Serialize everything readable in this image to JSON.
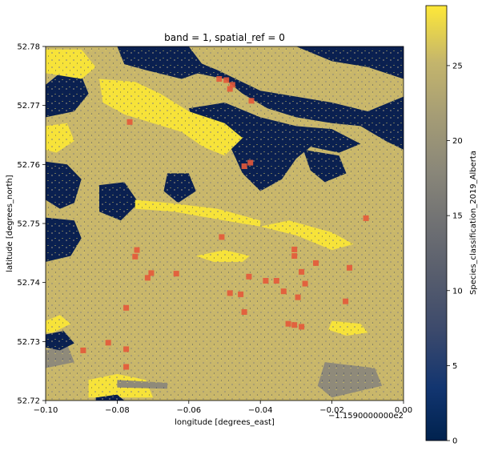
{
  "chart_data": {
    "type": "heatmap",
    "title": "band = 1, spatial_ref = 0",
    "xlabel": "longitude [degrees_east]",
    "ylabel": "latitude [degrees_north]",
    "x_offset_label": "−1.1590000000e2",
    "xlim": [
      -0.1,
      0.0
    ],
    "ylim": [
      52.72,
      52.78
    ],
    "x_ticks": [
      "−0.10",
      "−0.08",
      "−0.06",
      "−0.04",
      "−0.02",
      "0.00"
    ],
    "y_ticks": [
      "52.72",
      "52.73",
      "52.74",
      "52.75",
      "52.76",
      "52.77",
      "52.78"
    ],
    "colorbar": {
      "label": "Species_classification_2019_Alberta",
      "range": [
        0,
        29
      ],
      "ticks": [
        "0",
        "5",
        "10",
        "15",
        "20",
        "25"
      ],
      "colormap": "cividis"
    },
    "class_colors": {
      "water": "#0a2050",
      "upland": "#c9b76b",
      "bright": "#f7e339",
      "sparse": "#8f8a7a"
    },
    "patches": [
      {
        "class": "water",
        "points": [
          [
            -0.1,
            52.7735
          ],
          [
            -0.095,
            52.776
          ],
          [
            -0.09,
            52.775
          ],
          [
            -0.088,
            52.772
          ],
          [
            -0.092,
            52.769
          ],
          [
            -0.1,
            52.768
          ]
        ]
      },
      {
        "class": "water",
        "points": [
          [
            -0.08,
            52.78
          ],
          [
            -0.06,
            52.78
          ],
          [
            -0.055,
            52.776
          ],
          [
            -0.062,
            52.7745
          ],
          [
            -0.072,
            52.776
          ],
          [
            -0.078,
            52.777
          ]
        ]
      },
      {
        "class": "water",
        "points": [
          [
            -0.058,
            52.7755
          ],
          [
            -0.05,
            52.7745
          ],
          [
            -0.045,
            52.772
          ],
          [
            -0.038,
            52.7695
          ],
          [
            -0.03,
            52.768
          ],
          [
            -0.02,
            52.767
          ],
          [
            -0.012,
            52.7665
          ],
          [
            -0.005,
            52.764
          ],
          [
            0.0,
            52.7625
          ],
          [
            0.0,
            52.7715
          ],
          [
            -0.01,
            52.769
          ],
          [
            -0.02,
            52.7705
          ],
          [
            -0.03,
            52.7715
          ],
          [
            -0.04,
            52.7725
          ],
          [
            -0.052,
            52.776
          ],
          [
            -0.058,
            52.7775
          ]
        ]
      },
      {
        "class": "water",
        "points": [
          [
            -0.03,
            52.78
          ],
          [
            -0.0,
            52.78
          ],
          [
            0.0,
            52.7745
          ],
          [
            -0.01,
            52.7765
          ],
          [
            -0.02,
            52.7775
          ]
        ]
      },
      {
        "class": "water",
        "points": [
          [
            -0.06,
            52.7695
          ],
          [
            -0.05,
            52.7705
          ],
          [
            -0.04,
            52.768
          ],
          [
            -0.03,
            52.7665
          ],
          [
            -0.02,
            52.766
          ],
          [
            -0.012,
            52.7635
          ],
          [
            -0.018,
            52.762
          ],
          [
            -0.026,
            52.763
          ],
          [
            -0.03,
            52.761
          ],
          [
            -0.034,
            52.7575
          ],
          [
            -0.04,
            52.7555
          ],
          [
            -0.045,
            52.7585
          ],
          [
            -0.048,
            52.7625
          ],
          [
            -0.052,
            52.765
          ],
          [
            -0.058,
            52.766
          ]
        ]
      },
      {
        "class": "water",
        "points": [
          [
            -0.028,
            52.7625
          ],
          [
            -0.018,
            52.7615
          ],
          [
            -0.016,
            52.7585
          ],
          [
            -0.022,
            52.757
          ],
          [
            -0.026,
            52.759
          ]
        ]
      },
      {
        "class": "water",
        "points": [
          [
            -0.1,
            52.7605
          ],
          [
            -0.094,
            52.76
          ],
          [
            -0.09,
            52.7575
          ],
          [
            -0.092,
            52.7535
          ],
          [
            -0.096,
            52.7525
          ],
          [
            -0.1,
            52.754
          ]
        ]
      },
      {
        "class": "water",
        "points": [
          [
            -0.1,
            52.751
          ],
          [
            -0.092,
            52.7505
          ],
          [
            -0.09,
            52.7475
          ],
          [
            -0.093,
            52.7445
          ],
          [
            -0.1,
            52.7435
          ]
        ]
      },
      {
        "class": "water",
        "points": [
          [
            -0.085,
            52.7565
          ],
          [
            -0.078,
            52.757
          ],
          [
            -0.074,
            52.7535
          ],
          [
            -0.079,
            52.7505
          ],
          [
            -0.085,
            52.752
          ]
        ]
      },
      {
        "class": "water",
        "points": [
          [
            -0.066,
            52.7585
          ],
          [
            -0.06,
            52.7585
          ],
          [
            -0.058,
            52.7555
          ],
          [
            -0.063,
            52.7535
          ],
          [
            -0.067,
            52.7555
          ]
        ]
      },
      {
        "class": "bright",
        "points": [
          [
            -0.1,
            52.7795
          ],
          [
            -0.09,
            52.7795
          ],
          [
            -0.086,
            52.7765
          ],
          [
            -0.09,
            52.7745
          ],
          [
            -0.1,
            52.7755
          ]
        ]
      },
      {
        "class": "bright",
        "points": [
          [
            -0.085,
            52.7745
          ],
          [
            -0.075,
            52.774
          ],
          [
            -0.068,
            52.772
          ],
          [
            -0.06,
            52.769
          ],
          [
            -0.05,
            52.767
          ],
          [
            -0.045,
            52.7645
          ],
          [
            -0.05,
            52.7615
          ],
          [
            -0.056,
            52.763
          ],
          [
            -0.062,
            52.7655
          ],
          [
            -0.07,
            52.767
          ],
          [
            -0.078,
            52.7685
          ],
          [
            -0.084,
            52.7705
          ]
        ]
      },
      {
        "class": "bright",
        "points": [
          [
            -0.1,
            52.7665
          ],
          [
            -0.094,
            52.767
          ],
          [
            -0.092,
            52.764
          ],
          [
            -0.097,
            52.762
          ],
          [
            -0.1,
            52.7625
          ]
        ]
      },
      {
        "class": "bright",
        "points": [
          [
            -0.075,
            52.7525
          ],
          [
            -0.064,
            52.752
          ],
          [
            -0.05,
            52.7505
          ],
          [
            -0.04,
            52.7495
          ],
          [
            -0.04,
            52.7505
          ],
          [
            -0.052,
            52.7525
          ],
          [
            -0.066,
            52.7535
          ],
          [
            -0.075,
            52.754
          ]
        ]
      },
      {
        "class": "bright",
        "points": [
          [
            -0.04,
            52.7495
          ],
          [
            -0.03,
            52.748
          ],
          [
            -0.02,
            52.7455
          ],
          [
            -0.014,
            52.7465
          ],
          [
            -0.02,
            52.7485
          ],
          [
            -0.032,
            52.7505
          ]
        ]
      },
      {
        "class": "bright",
        "points": [
          [
            -0.058,
            52.7445
          ],
          [
            -0.05,
            52.7455
          ],
          [
            -0.043,
            52.7445
          ],
          [
            -0.045,
            52.7435
          ],
          [
            -0.053,
            52.7435
          ]
        ]
      },
      {
        "class": "bright",
        "points": [
          [
            -0.088,
            52.7235
          ],
          [
            -0.08,
            52.7245
          ],
          [
            -0.072,
            52.7235
          ],
          [
            -0.07,
            52.7205
          ],
          [
            -0.088,
            52.7205
          ]
        ]
      },
      {
        "class": "bright",
        "points": [
          [
            -0.1,
            52.7335
          ],
          [
            -0.096,
            52.7345
          ],
          [
            -0.093,
            52.733
          ],
          [
            -0.098,
            52.7315
          ],
          [
            -0.1,
            52.7315
          ]
        ]
      },
      {
        "class": "bright",
        "points": [
          [
            -0.02,
            52.7335
          ],
          [
            -0.012,
            52.733
          ],
          [
            -0.01,
            52.7315
          ],
          [
            -0.016,
            52.731
          ],
          [
            -0.021,
            52.732
          ]
        ]
      },
      {
        "class": "sparse",
        "points": [
          [
            -0.08,
            52.7235
          ],
          [
            -0.066,
            52.723
          ],
          [
            -0.066,
            52.722
          ],
          [
            -0.08,
            52.7222
          ]
        ]
      },
      {
        "class": "sparse",
        "points": [
          [
            -0.022,
            52.7265
          ],
          [
            -0.008,
            52.7255
          ],
          [
            -0.006,
            52.7225
          ],
          [
            -0.02,
            52.7205
          ],
          [
            -0.024,
            52.7225
          ]
        ]
      },
      {
        "class": "sparse",
        "points": [
          [
            -0.1,
            52.7285
          ],
          [
            -0.094,
            52.7295
          ],
          [
            -0.092,
            52.7265
          ],
          [
            -0.1,
            52.7255
          ]
        ]
      },
      {
        "class": "water",
        "points": [
          [
            -0.1,
            52.7312
          ],
          [
            -0.095,
            52.7318
          ],
          [
            -0.092,
            52.7297
          ],
          [
            -0.096,
            52.7285
          ],
          [
            -0.1,
            52.729
          ]
        ]
      },
      {
        "class": "water",
        "points": [
          [
            -0.086,
            52.7205
          ],
          [
            -0.08,
            52.721
          ],
          [
            -0.078,
            52.72
          ],
          [
            -0.086,
            52.72
          ]
        ]
      }
    ],
    "markers": [
      {
        "x": -0.0515,
        "y": 52.7745
      },
      {
        "x": -0.0495,
        "y": 52.7743
      },
      {
        "x": -0.0478,
        "y": 52.7735
      },
      {
        "x": -0.0485,
        "y": 52.7728
      },
      {
        "x": -0.0425,
        "y": 52.7708
      },
      {
        "x": -0.0765,
        "y": 52.7672
      },
      {
        "x": -0.0445,
        "y": 52.7597
      },
      {
        "x": -0.0428,
        "y": 52.7603
      },
      {
        "x": -0.0105,
        "y": 52.7509
      },
      {
        "x": -0.0508,
        "y": 52.7477
      },
      {
        "x": -0.0745,
        "y": 52.7455
      },
      {
        "x": -0.075,
        "y": 52.7444
      },
      {
        "x": -0.0305,
        "y": 52.7456
      },
      {
        "x": -0.0245,
        "y": 52.7433
      },
      {
        "x": -0.0305,
        "y": 52.7445
      },
      {
        "x": -0.0151,
        "y": 52.7425
      },
      {
        "x": -0.0285,
        "y": 52.7418
      },
      {
        "x": -0.0705,
        "y": 52.7416
      },
      {
        "x": -0.0635,
        "y": 52.7415
      },
      {
        "x": -0.0715,
        "y": 52.7408
      },
      {
        "x": -0.0432,
        "y": 52.741
      },
      {
        "x": -0.0385,
        "y": 52.7403
      },
      {
        "x": -0.0355,
        "y": 52.7403
      },
      {
        "x": -0.0275,
        "y": 52.7398
      },
      {
        "x": -0.0335,
        "y": 52.7385
      },
      {
        "x": -0.0485,
        "y": 52.7382
      },
      {
        "x": -0.0455,
        "y": 52.738
      },
      {
        "x": -0.0295,
        "y": 52.7375
      },
      {
        "x": -0.0162,
        "y": 52.7368
      },
      {
        "x": -0.0775,
        "y": 52.7357
      },
      {
        "x": -0.0445,
        "y": 52.735
      },
      {
        "x": -0.0322,
        "y": 52.733
      },
      {
        "x": -0.0305,
        "y": 52.7328
      },
      {
        "x": -0.0285,
        "y": 52.7325
      },
      {
        "x": -0.0825,
        "y": 52.7298
      },
      {
        "x": -0.0895,
        "y": 52.7285
      },
      {
        "x": -0.0775,
        "y": 52.7287
      },
      {
        "x": -0.0775,
        "y": 52.7257
      }
    ],
    "marker_color": "#e4593a"
  }
}
